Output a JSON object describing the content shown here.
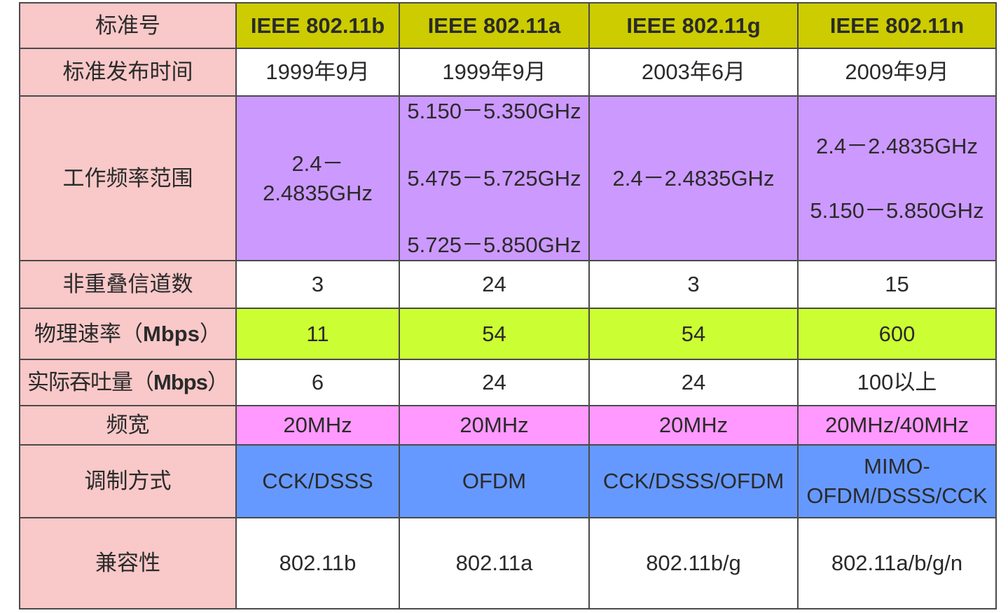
{
  "columns": [
    "IEEE 802.11b",
    "IEEE 802.11a",
    "IEEE 802.11g",
    "IEEE 802.11n"
  ],
  "header_label": "标准号",
  "rows": {
    "release": {
      "label": "标准发布时间",
      "values": [
        "1999年9月",
        "1999年9月",
        "2003年6月",
        "2009年9月"
      ]
    },
    "frequency": {
      "label": "工作频率范围",
      "b": [
        "2.4－",
        "2.4835GHz"
      ],
      "a": [
        "5.150－5.350GHz",
        "5.475－5.725GHz",
        "5.725－5.850GHz"
      ],
      "g": "2.4－2.4835GHz",
      "n": [
        "2.4－2.4835GHz",
        "5.150－5.850GHz"
      ]
    },
    "channels": {
      "label": "非重叠信道数",
      "values": [
        "3",
        "24",
        "3",
        "15"
      ]
    },
    "phy_rate": {
      "label_prefix": "物理速率（",
      "label_unit": "Mbps",
      "label_suffix": "）",
      "values": [
        "11",
        "54",
        "54",
        "600"
      ]
    },
    "throughput": {
      "label_prefix": "实际吞吐量（",
      "label_unit": "Mbps",
      "label_suffix": "）",
      "values": [
        "6",
        "24",
        "24",
        "100以上"
      ]
    },
    "bandwidth": {
      "label": "频宽",
      "values": [
        "20MHz",
        "20MHz",
        "20MHz",
        "20MHz/40MHz"
      ]
    },
    "modulation": {
      "label": "调制方式",
      "values": [
        "CCK/DSSS",
        "OFDM",
        "CCK/DSSS/OFDM"
      ],
      "n": [
        "MIMO-",
        "OFDM/DSSS/CCK"
      ]
    },
    "compat": {
      "label": "兼容性",
      "values": [
        "802.11b",
        "802.11a",
        "802.11b/g",
        "802.11a/b/g/n"
      ]
    }
  },
  "colors": {
    "label_bg": "#f9c8c8",
    "header_bg": "#cccc00",
    "freq_bg": "#cc99ff",
    "rate_bg": "#ccff33",
    "bandwidth_bg": "#ff99ff",
    "modulation_bg": "#6699ff"
  }
}
